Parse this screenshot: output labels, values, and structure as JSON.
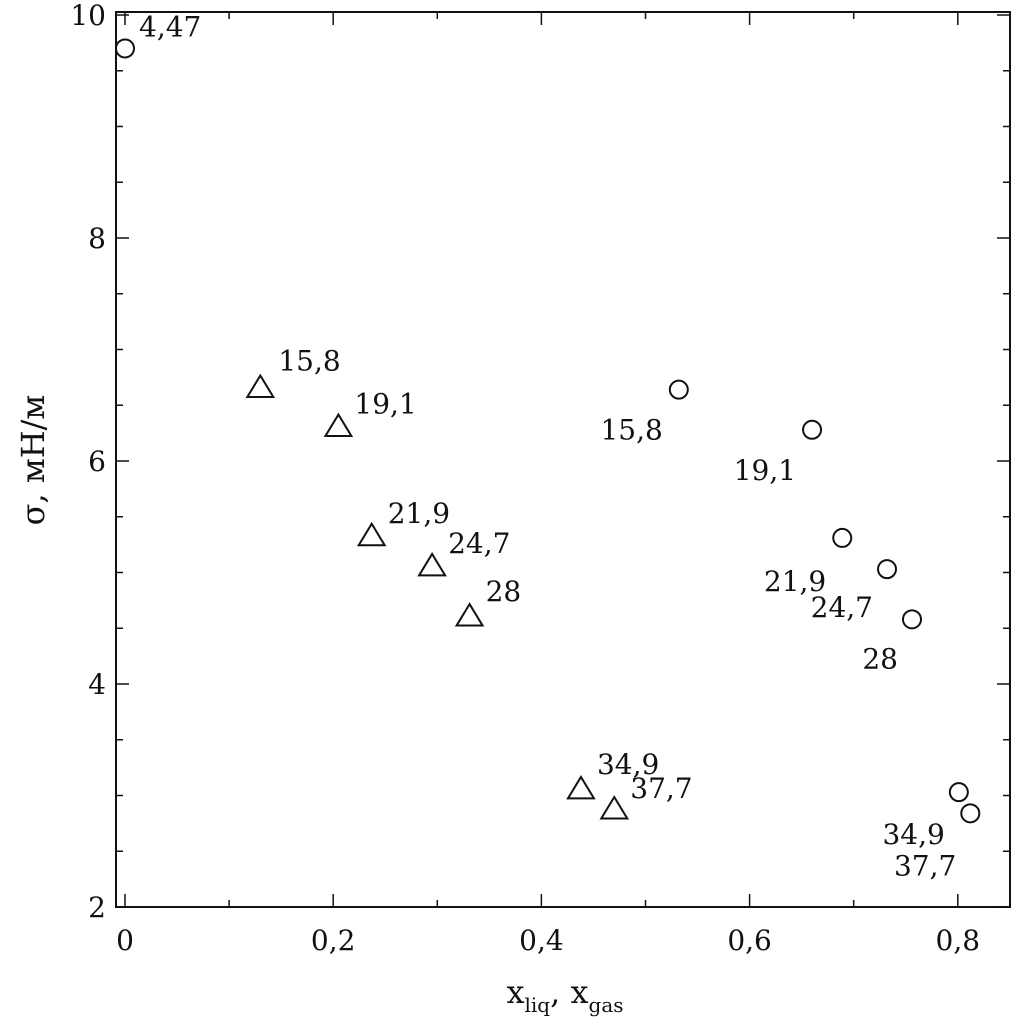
{
  "chart_data": {
    "type": "scatter",
    "title": "",
    "xlabel": {
      "main1": "x",
      "sub1": "liq",
      "sep": ", ",
      "main2": "x",
      "sub2": "gas"
    },
    "ylabel": "σ, мН/м",
    "xlim": [
      0,
      0.85
    ],
    "ylim": [
      2,
      10
    ],
    "xticks": [
      0,
      0.2,
      0.4,
      0.6,
      0.8
    ],
    "xtick_labels": [
      "0",
      "0,2",
      "0,4",
      "0,6",
      "0,8"
    ],
    "yticks": [
      2,
      4,
      6,
      8,
      10
    ],
    "ytick_labels": [
      "2",
      "4",
      "6",
      "8",
      "10"
    ],
    "grid": false,
    "series": [
      {
        "marker": "triangle",
        "points": [
          {
            "x": 0.13,
            "y": 6.65,
            "label": "15,8"
          },
          {
            "x": 0.205,
            "y": 6.3,
            "label": "19,1"
          },
          {
            "x": 0.237,
            "y": 5.32,
            "label": "21,9"
          },
          {
            "x": 0.295,
            "y": 5.05,
            "label": "24,7"
          },
          {
            "x": 0.331,
            "y": 4.6,
            "label": "28"
          },
          {
            "x": 0.438,
            "y": 3.05,
            "label": "34,9"
          },
          {
            "x": 0.47,
            "y": 2.87,
            "label": "37,7"
          }
        ]
      },
      {
        "marker": "circle",
        "points": [
          {
            "x": 0.0,
            "y": 9.7,
            "label": "4,47"
          },
          {
            "x": 0.532,
            "y": 6.64,
            "label": "15,8"
          },
          {
            "x": 0.66,
            "y": 6.28,
            "label": "19,1"
          },
          {
            "x": 0.689,
            "y": 5.31,
            "label": "21,9"
          },
          {
            "x": 0.732,
            "y": 5.03,
            "label": "24,7"
          },
          {
            "x": 0.756,
            "y": 4.58,
            "label": "28"
          },
          {
            "x": 0.801,
            "y": 3.03,
            "label": "34,9"
          },
          {
            "x": 0.812,
            "y": 2.84,
            "label": "37,7"
          }
        ]
      }
    ]
  }
}
